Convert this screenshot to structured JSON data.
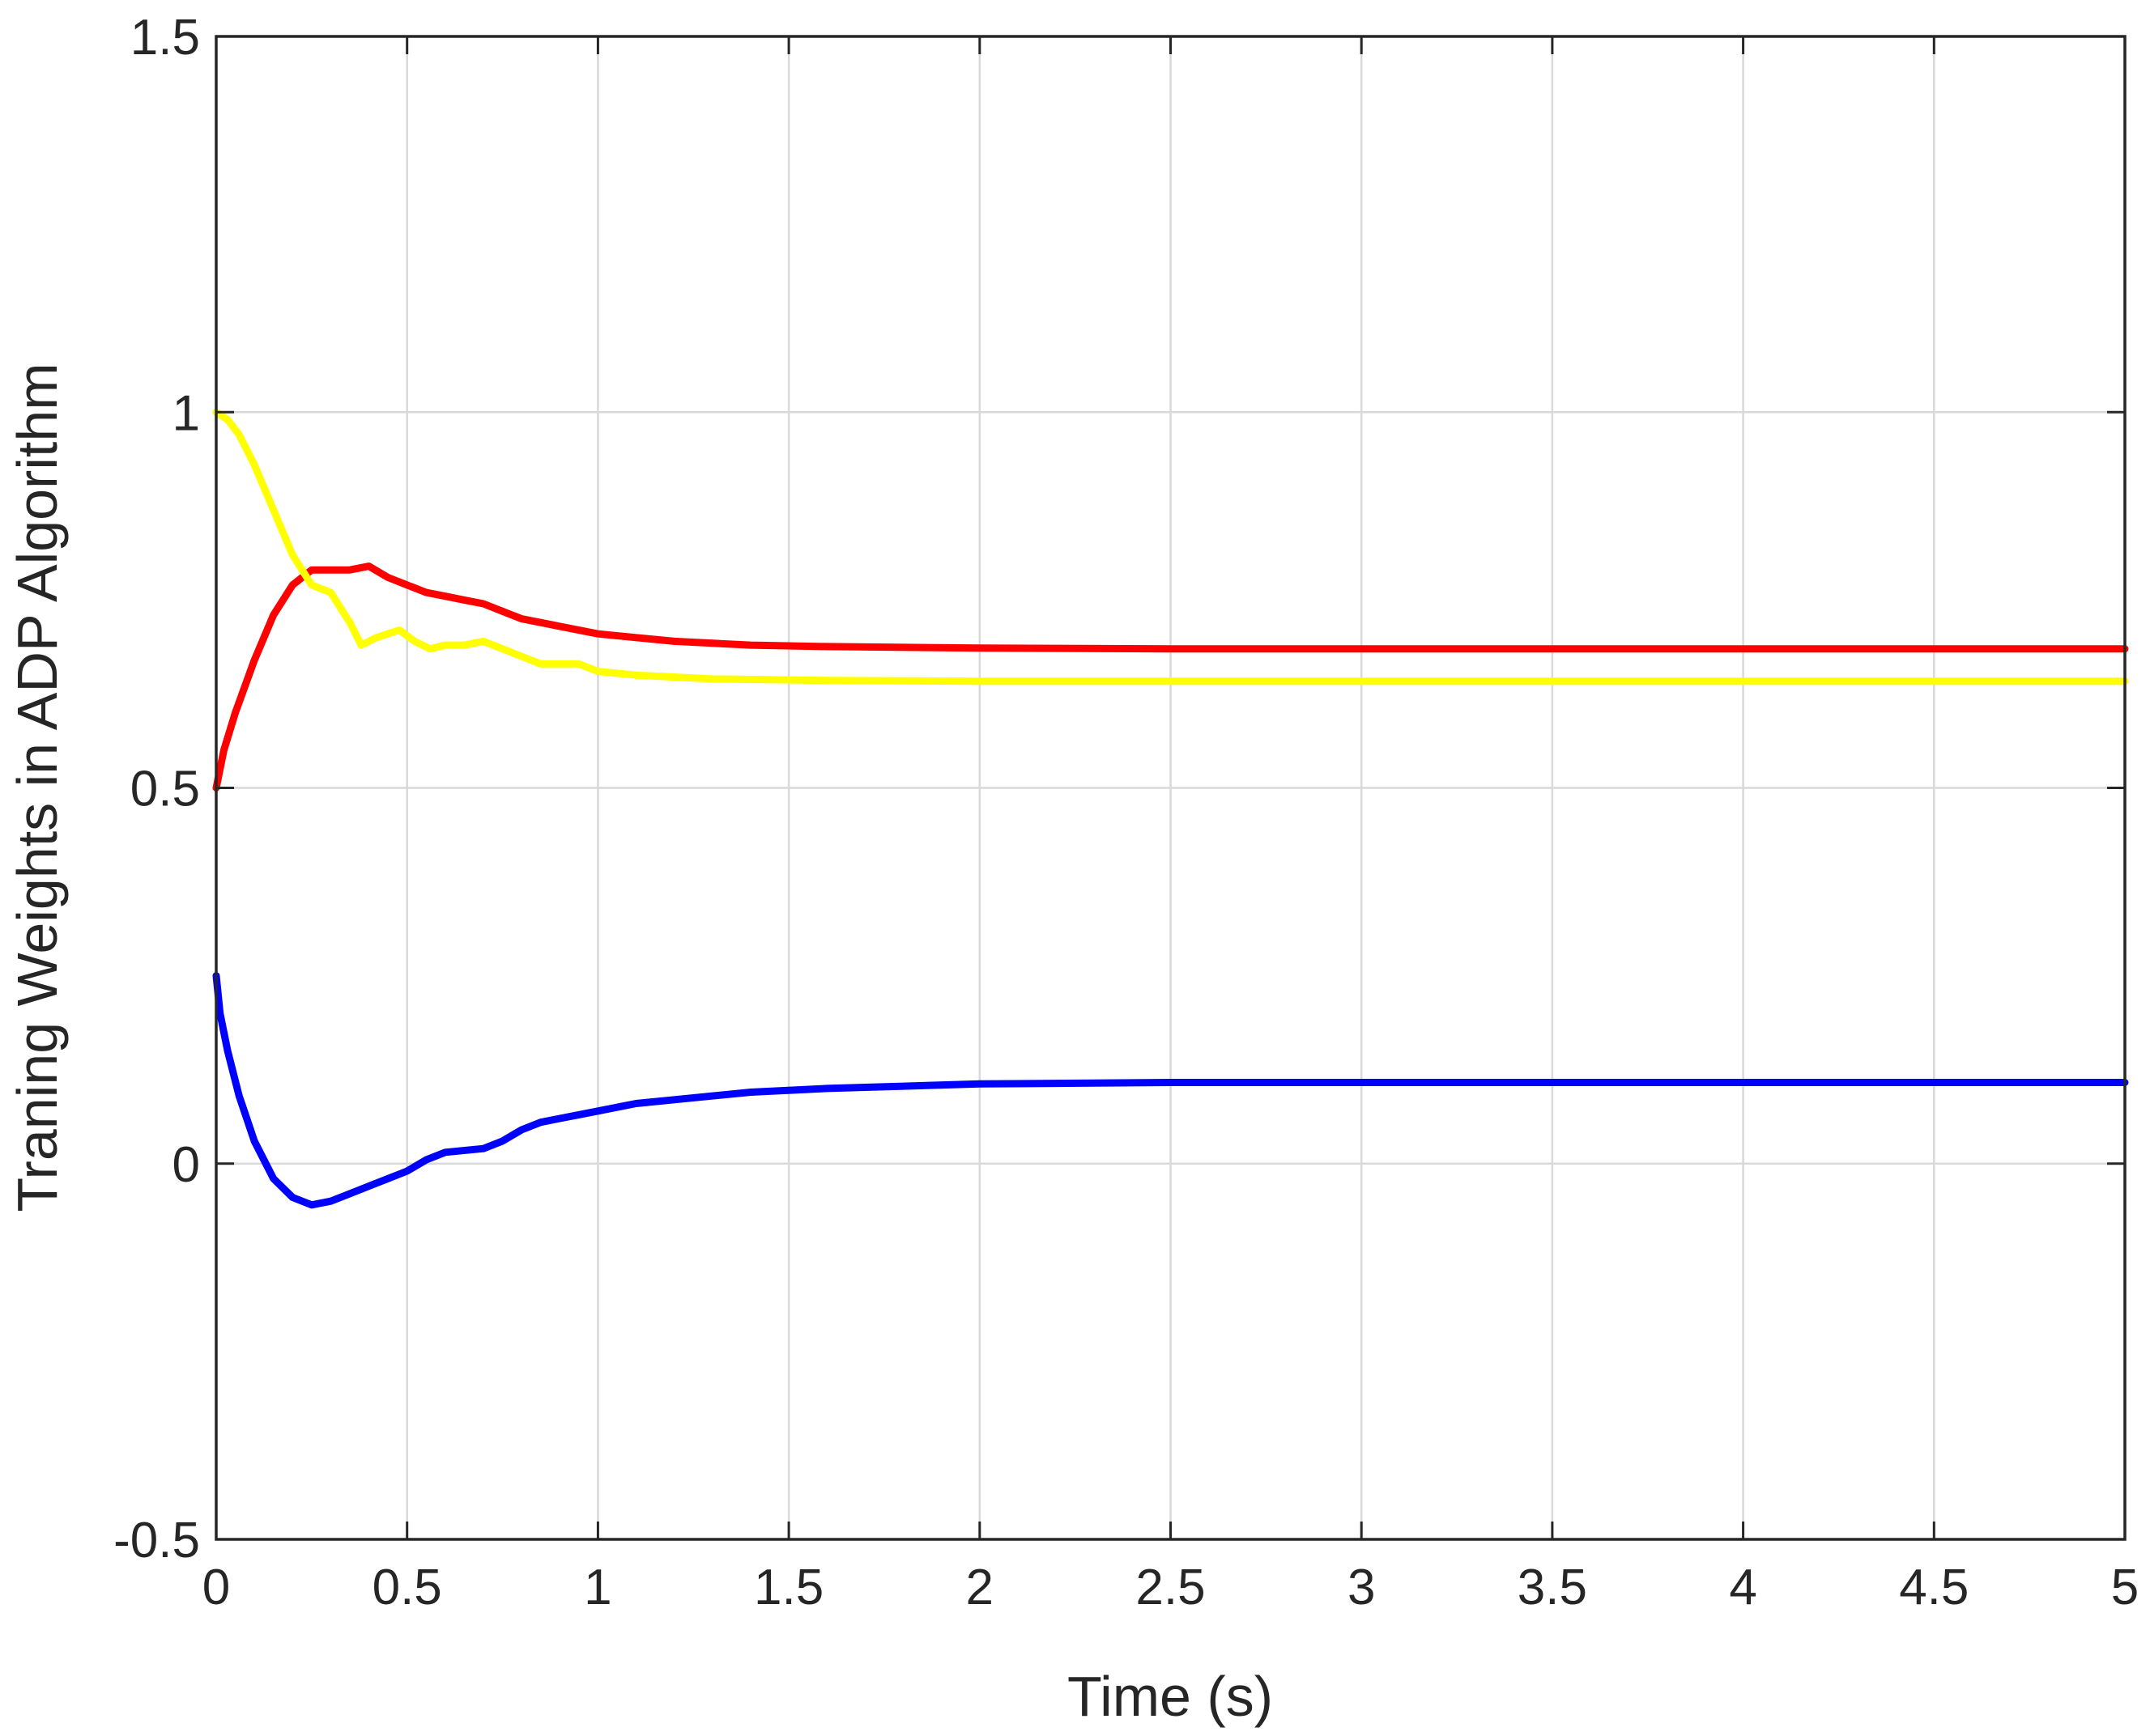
{
  "chart_data": {
    "type": "line",
    "title": "",
    "xlabel": "Time (s)",
    "ylabel": "Traning Weights in ADP Algorithm",
    "xlim": [
      0,
      5
    ],
    "ylim": [
      -0.5,
      1.5
    ],
    "xticks": [
      "0",
      "0.5",
      "1",
      "1.5",
      "2",
      "2.5",
      "3",
      "3.5",
      "4",
      "4.5",
      "5"
    ],
    "yticks": [
      "-0.5",
      "0",
      "0.5",
      "1",
      "1.5"
    ],
    "grid": true,
    "legend": "none",
    "series": [
      {
        "color": "#ff0000",
        "points": [
          [
            0,
            0.5
          ],
          [
            0.02,
            0.55
          ],
          [
            0.05,
            0.6
          ],
          [
            0.1,
            0.67
          ],
          [
            0.15,
            0.73
          ],
          [
            0.2,
            0.77
          ],
          [
            0.25,
            0.79
          ],
          [
            0.3,
            0.79
          ],
          [
            0.35,
            0.79
          ],
          [
            0.4,
            0.795
          ],
          [
            0.45,
            0.78
          ],
          [
            0.5,
            0.77
          ],
          [
            0.55,
            0.76
          ],
          [
            0.6,
            0.755
          ],
          [
            0.65,
            0.75
          ],
          [
            0.7,
            0.745
          ],
          [
            0.75,
            0.735
          ],
          [
            0.8,
            0.725
          ],
          [
            0.85,
            0.72
          ],
          [
            0.9,
            0.715
          ],
          [
            1.0,
            0.705
          ],
          [
            1.1,
            0.7
          ],
          [
            1.2,
            0.695
          ],
          [
            1.4,
            0.69
          ],
          [
            1.6,
            0.688
          ],
          [
            2.0,
            0.686
          ],
          [
            2.5,
            0.685
          ],
          [
            3,
            0.685
          ],
          [
            4,
            0.685
          ],
          [
            5,
            0.685
          ]
        ]
      },
      {
        "color": "#ffff00",
        "points": [
          [
            0,
            1.0
          ],
          [
            0.03,
            0.99
          ],
          [
            0.06,
            0.97
          ],
          [
            0.1,
            0.93
          ],
          [
            0.15,
            0.87
          ],
          [
            0.2,
            0.81
          ],
          [
            0.25,
            0.77
          ],
          [
            0.3,
            0.76
          ],
          [
            0.35,
            0.72
          ],
          [
            0.38,
            0.69
          ],
          [
            0.42,
            0.7
          ],
          [
            0.48,
            0.71
          ],
          [
            0.52,
            0.695
          ],
          [
            0.56,
            0.685
          ],
          [
            0.6,
            0.69
          ],
          [
            0.65,
            0.69
          ],
          [
            0.7,
            0.695
          ],
          [
            0.75,
            0.685
          ],
          [
            0.8,
            0.675
          ],
          [
            0.85,
            0.665
          ],
          [
            0.9,
            0.665
          ],
          [
            0.95,
            0.665
          ],
          [
            1.0,
            0.655
          ],
          [
            1.1,
            0.65
          ],
          [
            1.3,
            0.645
          ],
          [
            1.6,
            0.643
          ],
          [
            2.0,
            0.642
          ],
          [
            3,
            0.642
          ],
          [
            4,
            0.642
          ],
          [
            5,
            0.642
          ]
        ]
      },
      {
        "color": "#0000ff",
        "points": [
          [
            0,
            0.25
          ],
          [
            0.01,
            0.2
          ],
          [
            0.03,
            0.15
          ],
          [
            0.06,
            0.09
          ],
          [
            0.1,
            0.03
          ],
          [
            0.15,
            -0.02
          ],
          [
            0.2,
            -0.045
          ],
          [
            0.25,
            -0.055
          ],
          [
            0.3,
            -0.05
          ],
          [
            0.35,
            -0.04
          ],
          [
            0.4,
            -0.03
          ],
          [
            0.45,
            -0.02
          ],
          [
            0.5,
            -0.01
          ],
          [
            0.55,
            0.005
          ],
          [
            0.6,
            0.015
          ],
          [
            0.7,
            0.02
          ],
          [
            0.75,
            0.03
          ],
          [
            0.8,
            0.045
          ],
          [
            0.85,
            0.055
          ],
          [
            0.9,
            0.06
          ],
          [
            0.95,
            0.065
          ],
          [
            1.0,
            0.07
          ],
          [
            1.1,
            0.08
          ],
          [
            1.2,
            0.085
          ],
          [
            1.4,
            0.095
          ],
          [
            1.6,
            0.1
          ],
          [
            1.8,
            0.103
          ],
          [
            2.0,
            0.106
          ],
          [
            2.5,
            0.108
          ],
          [
            3,
            0.108
          ],
          [
            4,
            0.108
          ],
          [
            5,
            0.108
          ]
        ]
      }
    ]
  }
}
